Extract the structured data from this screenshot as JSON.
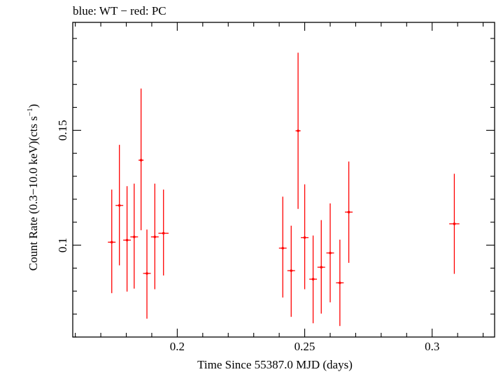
{
  "chart_data": {
    "type": "scatter",
    "title": "blue: WT − red: PC",
    "xlabel": "Time Since 55387.0 MJD (days)",
    "ylabel_main": "Count Rate (0.3−10.0 keV)(cts s",
    "ylabel_sup": "−1",
    "ylabel_close": ")",
    "xlim": [
      0.159,
      0.3245
    ],
    "ylim": [
      0.06,
      0.197
    ],
    "x_ticks": [
      {
        "value": 0.2,
        "label": "0.2"
      },
      {
        "value": 0.25,
        "label": "0.25"
      },
      {
        "value": 0.3,
        "label": "0.3"
      }
    ],
    "y_ticks": [
      {
        "value": 0.1,
        "label": "0.1"
      },
      {
        "value": 0.15,
        "label": "0.15"
      }
    ],
    "x_minor_step": 0.01,
    "y_minor_step": 0.01,
    "grid": false,
    "series": [
      {
        "color": "#ff0000",
        "points": [
          {
            "x": 0.1743,
            "xerr": 0.0015,
            "y": 0.1013,
            "ylo": 0.0791,
            "yhi": 0.1242
          },
          {
            "x": 0.1773,
            "xerr": 0.0015,
            "y": 0.1173,
            "ylo": 0.0912,
            "yhi": 0.1437
          },
          {
            "x": 0.1803,
            "xerr": 0.0015,
            "y": 0.1022,
            "ylo": 0.0798,
            "yhi": 0.1257
          },
          {
            "x": 0.1831,
            "xerr": 0.0015,
            "y": 0.1036,
            "ylo": 0.0811,
            "yhi": 0.1268
          },
          {
            "x": 0.1858,
            "xerr": 0.001,
            "y": 0.137,
            "ylo": 0.1065,
            "yhi": 0.1682
          },
          {
            "x": 0.1881,
            "xerr": 0.0015,
            "y": 0.0877,
            "ylo": 0.068,
            "yhi": 0.1068
          },
          {
            "x": 0.1912,
            "xerr": 0.0015,
            "y": 0.1036,
            "ylo": 0.0808,
            "yhi": 0.1268
          },
          {
            "x": 0.1946,
            "xerr": 0.002,
            "y": 0.1052,
            "ylo": 0.0868,
            "yhi": 0.1242
          },
          {
            "x": 0.2414,
            "xerr": 0.0015,
            "y": 0.0987,
            "ylo": 0.0772,
            "yhi": 0.1211
          },
          {
            "x": 0.2447,
            "xerr": 0.0015,
            "y": 0.0889,
            "ylo": 0.0688,
            "yhi": 0.1085
          },
          {
            "x": 0.2474,
            "xerr": 0.001,
            "y": 0.1498,
            "ylo": 0.1158,
            "yhi": 0.1838
          },
          {
            "x": 0.25,
            "xerr": 0.0015,
            "y": 0.1033,
            "ylo": 0.0808,
            "yhi": 0.1265
          },
          {
            "x": 0.2533,
            "xerr": 0.0015,
            "y": 0.0852,
            "ylo": 0.066,
            "yhi": 0.1042
          },
          {
            "x": 0.2565,
            "xerr": 0.0015,
            "y": 0.0904,
            "ylo": 0.0702,
            "yhi": 0.1109
          },
          {
            "x": 0.26,
            "xerr": 0.0015,
            "y": 0.0966,
            "ylo": 0.0751,
            "yhi": 0.1182
          },
          {
            "x": 0.2638,
            "xerr": 0.0015,
            "y": 0.0836,
            "ylo": 0.0648,
            "yhi": 0.1024
          },
          {
            "x": 0.2673,
            "xerr": 0.0015,
            "y": 0.1144,
            "ylo": 0.0923,
            "yhi": 0.1364
          },
          {
            "x": 0.3087,
            "xerr": 0.002,
            "y": 0.1093,
            "ylo": 0.0875,
            "yhi": 0.1311
          }
        ]
      }
    ]
  }
}
